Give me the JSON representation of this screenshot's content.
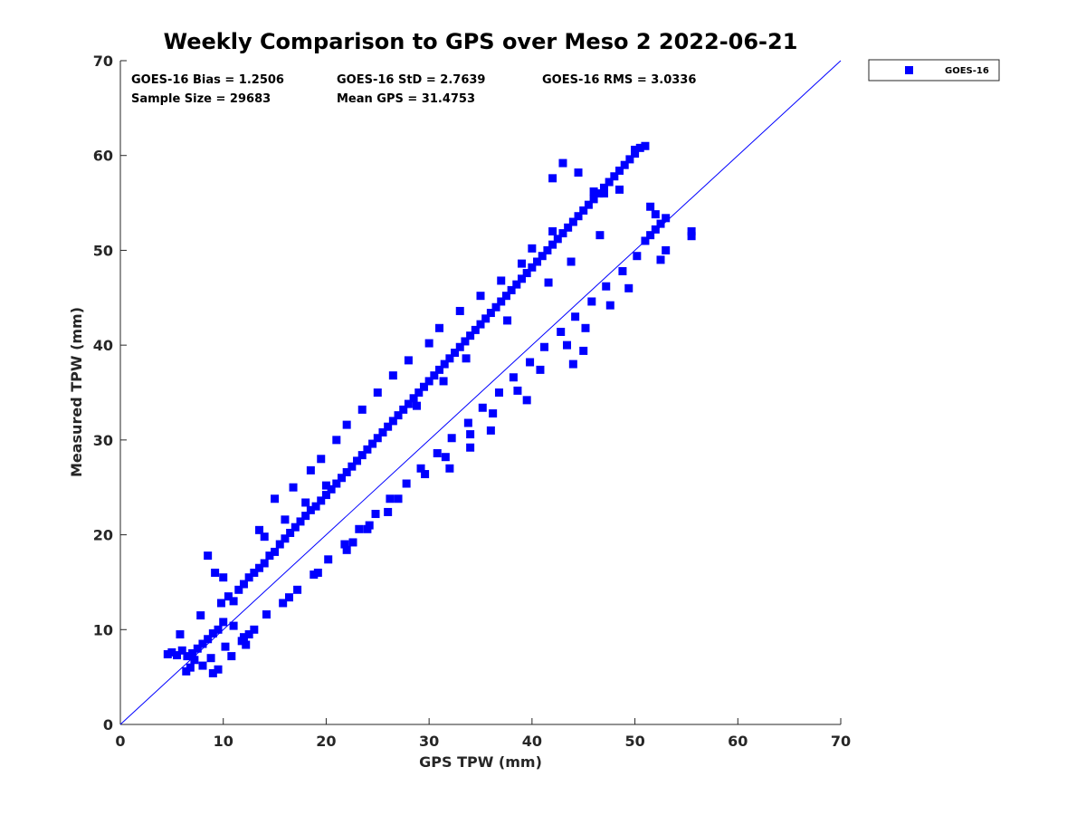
{
  "chart_data": {
    "type": "scatter",
    "title": "Weekly Comparison to GPS over Meso 2 2022-06-21",
    "xlabel": "GPS TPW (mm)",
    "ylabel": "Measured TPW (mm)",
    "xlim": [
      0,
      70
    ],
    "ylim": [
      0,
      70
    ],
    "xticks": [
      "0",
      "10",
      "20",
      "30",
      "40",
      "50",
      "60",
      "70"
    ],
    "yticks": [
      "0",
      "10",
      "20",
      "30",
      "40",
      "50",
      "60",
      "70"
    ],
    "grid": false,
    "legend_position": "outside-top-right",
    "reference_line": {
      "x": [
        0,
        70
      ],
      "y": [
        0,
        70
      ],
      "color": "#0000ff"
    },
    "stats": {
      "bias": "GOES-16 Bias = 1.2506",
      "std": "GOES-16 StD = 2.7639",
      "rms": "GOES-16 RMS = 3.0336",
      "sample_size": "Sample Size = 29683",
      "mean_gps": "Mean GPS = 31.4753"
    },
    "series": [
      {
        "name": "GOES-16",
        "color": "#0000ff",
        "marker": "square",
        "x": [
          4.6,
          5.0,
          5.5,
          6.0,
          6.5,
          7.0,
          7.5,
          8.0,
          8.5,
          9.0,
          9.5,
          10.0,
          5.8,
          6.8,
          7.8,
          8.8,
          9.8,
          10.5,
          11.0,
          11.5,
          12.0,
          12.5,
          13.0,
          13.5,
          14.0,
          14.5,
          15.0,
          15.5,
          16.0,
          16.5,
          17.0,
          17.5,
          18.0,
          18.5,
          19.0,
          19.5,
          20.0,
          20.5,
          21.0,
          21.5,
          22.0,
          22.5,
          23.0,
          23.5,
          24.0,
          24.5,
          25.0,
          25.5,
          26.0,
          26.5,
          27.0,
          27.5,
          28.0,
          28.5,
          29.0,
          29.5,
          30.0,
          30.5,
          31.0,
          31.5,
          32.0,
          32.5,
          33.0,
          33.5,
          34.0,
          34.5,
          35.0,
          35.5,
          36.0,
          36.5,
          37.0,
          37.5,
          38.0,
          38.5,
          39.0,
          39.5,
          40.0,
          40.5,
          41.0,
          41.5,
          42.0,
          42.5,
          43.0,
          43.5,
          44.0,
          44.5,
          45.0,
          45.5,
          46.0,
          46.5,
          47.0,
          47.5,
          48.0,
          48.5,
          49.0,
          49.5,
          50.0,
          50.5,
          51.0,
          51.5,
          52.0,
          52.5,
          53.0,
          55.5,
          55.5,
          50.0,
          51.0,
          44.5,
          42.0,
          43.0,
          9.2,
          8.5,
          12.5,
          10.0,
          11.8,
          13.5,
          15.0,
          16.8,
          18.5,
          19.5,
          21.0,
          22.0,
          23.5,
          25.0,
          26.5,
          28.0,
          30.0,
          31.0,
          33.0,
          35.0,
          37.0,
          39.0,
          40.0,
          42.0,
          46.0,
          47.0,
          48.5,
          51.5,
          52.0,
          10.8,
          12.2,
          13.0,
          15.8,
          17.2,
          18.8,
          20.2,
          21.8,
          23.2,
          24.8,
          26.2,
          27.8,
          29.2,
          30.8,
          32.2,
          33.8,
          35.2,
          36.8,
          38.2,
          39.8,
          41.2,
          42.8,
          44.2,
          45.8,
          47.2,
          48.8,
          50.2,
          8.0,
          9.5,
          11.0,
          14.2,
          16.4,
          19.2,
          22.6,
          24.2,
          27.0,
          29.6,
          31.6,
          34.0,
          36.2,
          38.6,
          40.8,
          43.4,
          45.2,
          47.6,
          49.4,
          52.5,
          53.0,
          14.0,
          16.0,
          18.0,
          20.0,
          28.8,
          31.4,
          33.6,
          37.6,
          41.6,
          43.8,
          46.6,
          44.0,
          45.0,
          39.5,
          36.0,
          34.0,
          32.0,
          26.0,
          24.0,
          22.0,
          12.0,
          10.2,
          7.2,
          6.4,
          9.0
        ],
        "y": [
          7.4,
          7.6,
          7.3,
          7.8,
          7.2,
          7.5,
          8.0,
          8.5,
          9.0,
          9.6,
          10.0,
          10.8,
          9.5,
          6.0,
          11.5,
          7.0,
          12.8,
          13.5,
          13.0,
          14.2,
          14.8,
          15.5,
          16.0,
          16.5,
          17.0,
          17.8,
          18.2,
          19.0,
          19.6,
          20.2,
          20.8,
          21.4,
          22.0,
          22.6,
          23.0,
          23.6,
          24.2,
          24.8,
          25.4,
          26.0,
          26.6,
          27.2,
          27.8,
          28.4,
          29.0,
          29.6,
          30.2,
          30.8,
          31.4,
          32.0,
          32.6,
          33.2,
          33.8,
          34.4,
          35.0,
          35.6,
          36.2,
          36.8,
          37.4,
          38.0,
          38.6,
          39.2,
          39.8,
          40.4,
          41.0,
          41.6,
          42.2,
          42.8,
          43.4,
          44.0,
          44.6,
          45.2,
          45.8,
          46.4,
          47.0,
          47.6,
          48.2,
          48.8,
          49.4,
          50.0,
          50.6,
          51.2,
          51.8,
          52.4,
          53.0,
          53.6,
          54.2,
          54.8,
          55.4,
          56.0,
          56.6,
          57.2,
          57.8,
          58.4,
          59.0,
          59.6,
          60.2,
          60.8,
          51.0,
          51.6,
          52.2,
          52.8,
          53.4,
          51.5,
          52.0,
          60.6,
          61.0,
          58.2,
          57.6,
          59.2,
          16.0,
          17.8,
          9.5,
          15.5,
          8.8,
          20.5,
          23.8,
          25.0,
          26.8,
          28.0,
          30.0,
          31.6,
          33.2,
          35.0,
          36.8,
          38.4,
          40.2,
          41.8,
          43.6,
          45.2,
          46.8,
          48.6,
          50.2,
          52.0,
          56.2,
          56.0,
          56.4,
          54.6,
          53.8,
          7.2,
          8.4,
          10.0,
          12.8,
          14.2,
          15.8,
          17.4,
          19.0,
          20.6,
          22.2,
          23.8,
          25.4,
          27.0,
          28.6,
          30.2,
          31.8,
          33.4,
          35.0,
          36.6,
          38.2,
          39.8,
          41.4,
          43.0,
          44.6,
          46.2,
          47.8,
          49.4,
          6.2,
          5.8,
          10.4,
          11.6,
          13.4,
          16.0,
          19.2,
          21.0,
          23.8,
          26.4,
          28.2,
          30.6,
          32.8,
          35.2,
          37.4,
          40.0,
          41.8,
          44.2,
          46.0,
          49.0,
          50.0,
          19.8,
          21.6,
          23.4,
          25.2,
          33.6,
          36.2,
          38.6,
          42.6,
          46.6,
          48.8,
          51.6,
          38.0,
          39.4,
          34.2,
          31.0,
          29.2,
          27.0,
          22.4,
          20.6,
          18.4,
          9.2,
          8.2,
          6.8,
          5.6,
          5.4
        ]
      }
    ]
  }
}
